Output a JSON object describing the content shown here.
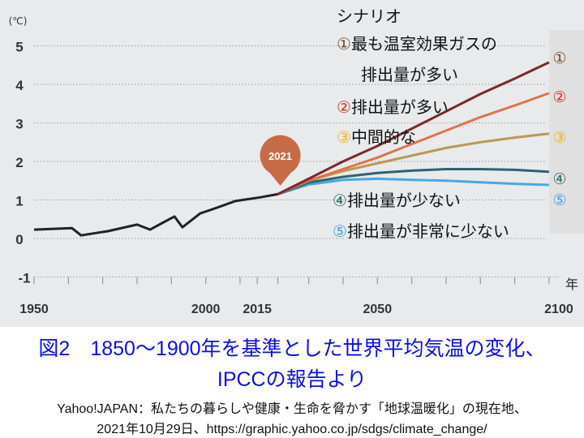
{
  "chart_data": {
    "type": "line",
    "ylabel": "(℃)",
    "xlabel": "年",
    "ylim": [
      -1,
      5
    ],
    "xlim": [
      1950,
      2100
    ],
    "yticks": [
      "5",
      "4",
      "3",
      "2",
      "1",
      "0",
      "-1"
    ],
    "xticks": [
      "1950",
      "2000",
      "2015",
      "2050",
      "2100"
    ],
    "grid": true,
    "marker_label": "2021",
    "marker_color": "#c56b47",
    "legend_title": "シナリオ",
    "history": {
      "color": "#222222",
      "points": [
        [
          1950,
          0.23
        ],
        [
          1961,
          0.27
        ],
        [
          1963.7,
          0.08
        ],
        [
          1971.5,
          0.19
        ],
        [
          1980,
          0.36
        ],
        [
          1983.8,
          0.23
        ],
        [
          1987.3,
          0.4
        ],
        [
          1990.9,
          0.57
        ],
        [
          1993.2,
          0.29
        ],
        [
          1998.4,
          0.65
        ],
        [
          2003.9,
          0.82
        ],
        [
          2008.6,
          0.97
        ],
        [
          2016,
          1.07
        ],
        [
          2021,
          1.15
        ]
      ]
    },
    "series": [
      {
        "name": "①最も温室効果ガスの排出量が多い",
        "num": "①",
        "legend_lines": [
          "最も温室効果ガスの",
          "排出量が多い"
        ],
        "color": "#7a2a2a",
        "num_color": "#7a4a22",
        "points": [
          [
            2021,
            1.15
          ],
          [
            2030,
            1.55
          ],
          [
            2040,
            2.0
          ],
          [
            2050,
            2.4
          ],
          [
            2060,
            2.85
          ],
          [
            2070,
            3.3
          ],
          [
            2080,
            3.75
          ],
          [
            2090,
            4.15
          ],
          [
            2100,
            4.57
          ]
        ]
      },
      {
        "name": "②排出量が多い",
        "num": "②",
        "legend_lines": [
          "排出量が多い"
        ],
        "color": "#e0734a",
        "num_color": "#d03020",
        "points": [
          [
            2021,
            1.15
          ],
          [
            2030,
            1.5
          ],
          [
            2040,
            1.8
          ],
          [
            2050,
            2.1
          ],
          [
            2060,
            2.45
          ],
          [
            2070,
            2.8
          ],
          [
            2080,
            3.15
          ],
          [
            2090,
            3.45
          ],
          [
            2100,
            3.77
          ]
        ]
      },
      {
        "name": "③中間的な",
        "num": "③",
        "legend_lines": [
          "中間的な"
        ],
        "color": "#b89a55",
        "num_color": "#f0b020",
        "points": [
          [
            2021,
            1.15
          ],
          [
            2030,
            1.5
          ],
          [
            2040,
            1.75
          ],
          [
            2050,
            1.95
          ],
          [
            2060,
            2.15
          ],
          [
            2070,
            2.35
          ],
          [
            2080,
            2.5
          ],
          [
            2090,
            2.62
          ],
          [
            2100,
            2.72
          ]
        ]
      },
      {
        "name": "④排出量が少ない",
        "num": "④",
        "legend_lines": [
          "排出量が少ない"
        ],
        "color": "#2d6373",
        "num_color": "#2d6b60",
        "points": [
          [
            2021,
            1.15
          ],
          [
            2030,
            1.45
          ],
          [
            2040,
            1.6
          ],
          [
            2050,
            1.7
          ],
          [
            2060,
            1.76
          ],
          [
            2070,
            1.8
          ],
          [
            2080,
            1.8
          ],
          [
            2090,
            1.78
          ],
          [
            2100,
            1.73
          ]
        ]
      },
      {
        "name": "⑤排出量が非常に少ない",
        "num": "⑤",
        "legend_lines": [
          "排出量が非常に少ない"
        ],
        "color": "#4aa8e0",
        "num_color": "#40a0e0",
        "points": [
          [
            2021,
            1.15
          ],
          [
            2030,
            1.4
          ],
          [
            2040,
            1.52
          ],
          [
            2050,
            1.55
          ],
          [
            2060,
            1.52
          ],
          [
            2070,
            1.5
          ],
          [
            2080,
            1.46
          ],
          [
            2090,
            1.42
          ],
          [
            2100,
            1.39
          ]
        ]
      }
    ]
  },
  "caption": {
    "line1": "図2　1850〜1900年を基準とした世界平均気温の変化、",
    "line2": "IPCCの報告より"
  },
  "source": {
    "line1": "Yahoo!JAPAN：私たちの暮らしや健康・生命を脅かす「地球温暖化」の現在地、",
    "line2": "2021年10月29日、https://graphic.yahoo.co.jp/sdgs/climate_change/"
  }
}
